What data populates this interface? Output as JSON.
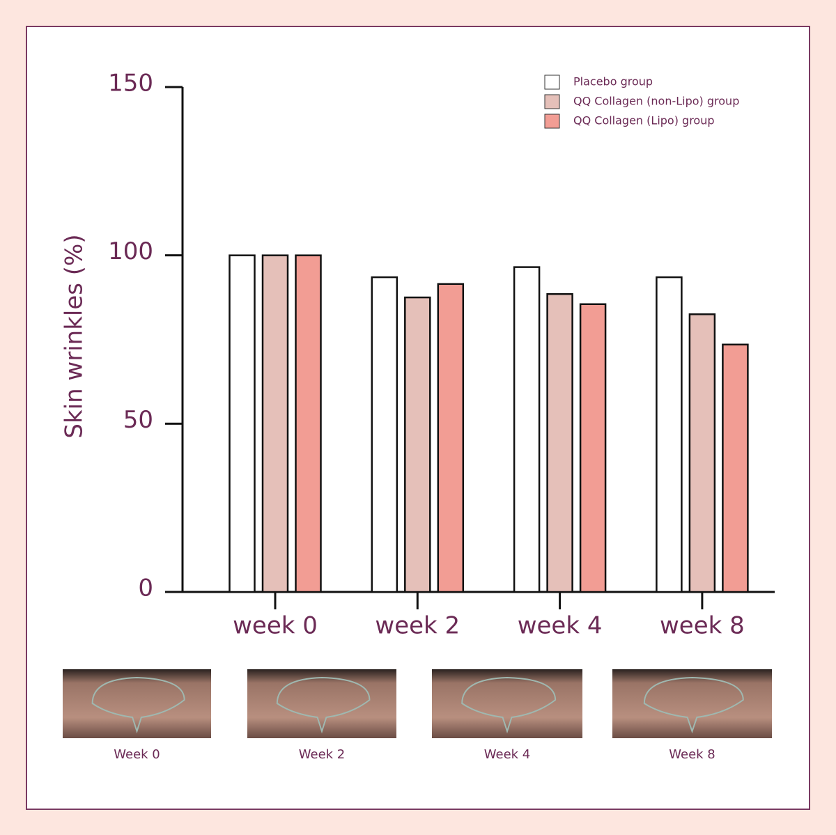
{
  "chart_data": {
    "type": "bar",
    "y_label": "Skin wrinkles (%)",
    "categories": [
      "week 0",
      "week 2",
      "week 4",
      "week 8"
    ],
    "series": [
      {
        "name": "Placebo group",
        "color": "#ffffff",
        "values": [
          100,
          93.5,
          96.5,
          93.5
        ]
      },
      {
        "name": "QQ Collagen (non-Lipo) group",
        "color": "#e5c0b9",
        "values": [
          100,
          87.5,
          88.5,
          82.5
        ]
      },
      {
        "name": "QQ Collagen (Lipo) group",
        "color": "#f29d94",
        "values": [
          100,
          91.5,
          85.5,
          73.5
        ]
      }
    ],
    "ylim": [
      0,
      150
    ],
    "yticks": [
      0,
      50,
      100,
      150
    ],
    "legend": "upper right"
  },
  "photos": {
    "captions": [
      "Week 0",
      "Week 2",
      "Week 4",
      "Week 8"
    ]
  }
}
